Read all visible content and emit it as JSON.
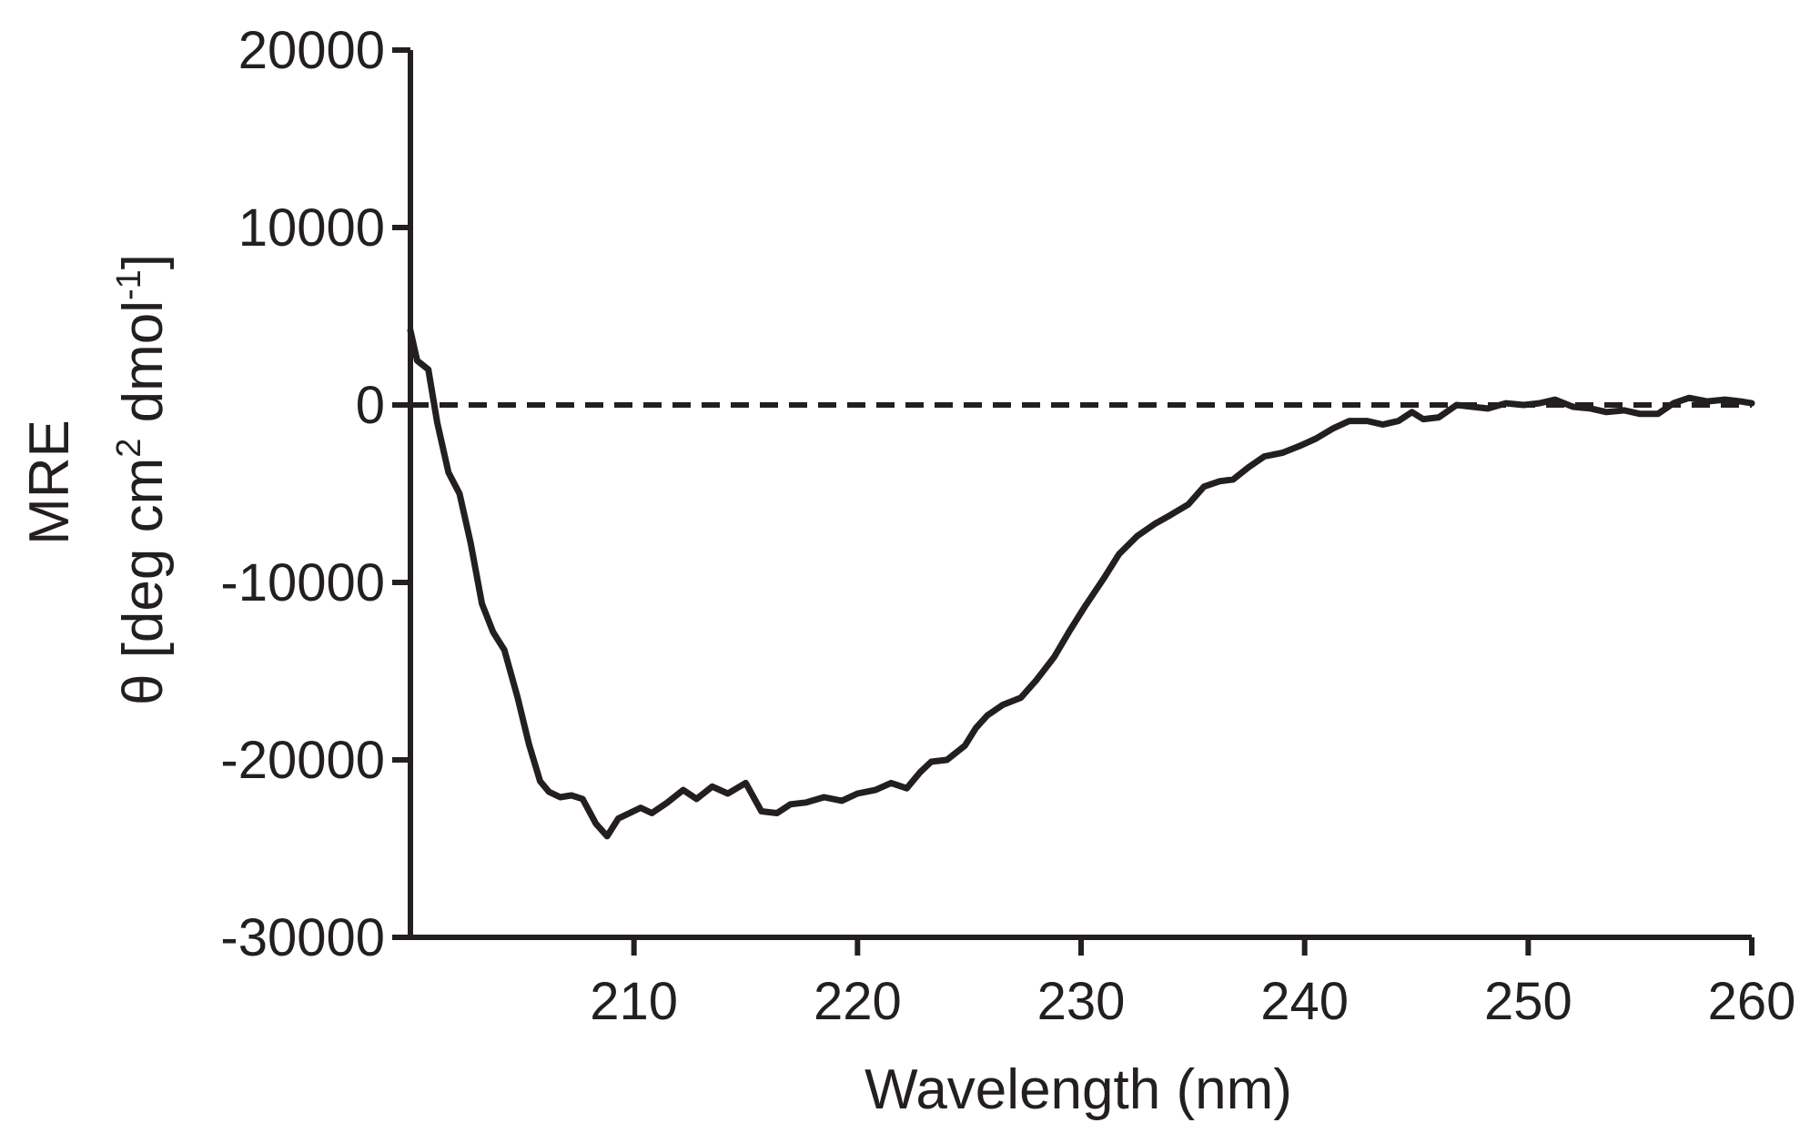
{
  "chart_data": {
    "type": "line",
    "xlabel": "Wavelength (nm)",
    "ylabel_line1": "MRE",
    "ylabel_line2_parts": [
      "θ [deg cm",
      "2",
      " dmol",
      "-1",
      "]"
    ],
    "xlim": [
      200,
      260
    ],
    "ylim": [
      -30000,
      20000
    ],
    "x_ticks": [
      210,
      220,
      230,
      240,
      250,
      260
    ],
    "x_tick_labels": [
      "210",
      "220",
      "230",
      "240",
      "250",
      "260"
    ],
    "y_ticks": [
      20000,
      10000,
      0,
      -10000,
      -20000,
      -30000
    ],
    "y_tick_labels": [
      "20000",
      "10000",
      "0",
      "-10000",
      "-20000",
      "-30000"
    ],
    "reference_line": {
      "y": 0,
      "style": "dashed"
    },
    "grid": false,
    "colors": {
      "line": "#231f20",
      "axis": "#231f20"
    },
    "series": [
      {
        "x": [
          200.0,
          200.3,
          200.8,
          201.2,
          201.7,
          202.2,
          202.7,
          203.2,
          203.7,
          204.2,
          204.8,
          205.3,
          205.8,
          206.2,
          206.7,
          207.2,
          207.7,
          208.3,
          208.8,
          209.3,
          209.8,
          210.3,
          210.8,
          211.5,
          212.2,
          212.8,
          213.5,
          214.2,
          215.0,
          215.7,
          216.4,
          217.0,
          217.7,
          218.5,
          219.3,
          220.0,
          220.8,
          221.5,
          222.2,
          222.8,
          223.3,
          224.0,
          224.8,
          225.3,
          225.8,
          226.5,
          227.3,
          228.0,
          228.8,
          229.5,
          230.2,
          231.0,
          231.7,
          232.5,
          233.3,
          234.0,
          234.8,
          235.5,
          236.2,
          236.8,
          237.5,
          238.2,
          239.0,
          239.8,
          240.5,
          241.3,
          242.0,
          242.8,
          243.5,
          244.2,
          244.8,
          245.3,
          246.0,
          246.8,
          247.5,
          248.2,
          249.0,
          249.8,
          250.5,
          251.2,
          252.0,
          252.8,
          253.5,
          254.3,
          255.0,
          255.8,
          256.5,
          257.2,
          258.0,
          258.8,
          259.5,
          260.0
        ],
        "y": [
          4200,
          2500,
          2000,
          -1000,
          -3800,
          -5000,
          -7800,
          -11200,
          -12800,
          -13800,
          -16500,
          -19100,
          -21200,
          -21800,
          -22100,
          -22000,
          -22200,
          -23600,
          -24300,
          -23300,
          -23000,
          -22700,
          -23000,
          -22400,
          -21700,
          -22200,
          -21500,
          -21900,
          -21300,
          -22900,
          -23000,
          -22500,
          -22400,
          -22100,
          -22300,
          -21900,
          -21700,
          -21300,
          -21600,
          -20700,
          -20100,
          -20000,
          -19200,
          -18200,
          -17500,
          -16900,
          -16500,
          -15500,
          -14200,
          -12700,
          -11300,
          -9800,
          -8400,
          -7400,
          -6700,
          -6200,
          -5600,
          -4600,
          -4300,
          -4200,
          -3500,
          -2900,
          -2700,
          -2300,
          -1900,
          -1300,
          -900,
          -900,
          -1100,
          -900,
          -400,
          -800,
          -700,
          0,
          -100,
          -200,
          100,
          0,
          100,
          300,
          -100,
          -200,
          -400,
          -300,
          -500,
          -500,
          100,
          400,
          200,
          300,
          200,
          100
        ]
      }
    ]
  }
}
